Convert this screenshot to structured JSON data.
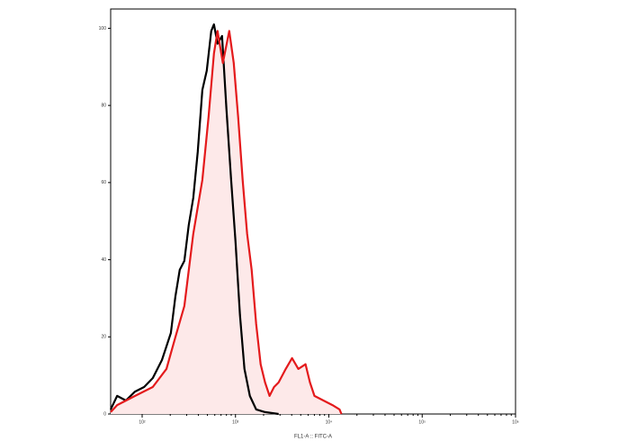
{
  "chart_data": {
    "type": "histogram-overlay",
    "x_label": "FL1-A :: FITC-A",
    "log_x": true,
    "xlim": [
      46,
      1000000
    ],
    "xticks": [
      {
        "value": 100,
        "label": "10²"
      },
      {
        "value": 1000,
        "label": "10³"
      },
      {
        "value": 10000,
        "label": "10⁴"
      },
      {
        "value": 100000,
        "label": "10⁵"
      },
      {
        "value": 1000000,
        "label": "10⁶"
      }
    ],
    "ylim": [
      0,
      105
    ],
    "yticks": [
      0,
      20,
      40,
      60,
      80,
      100
    ],
    "series": [
      {
        "color": "#000000",
        "x": [
          46,
          54,
          67,
          84,
          105,
          130,
          163,
          203,
          227,
          253,
          283,
          316,
          353,
          394,
          441,
          492,
          550,
          588,
          643,
          718,
          801,
          896,
          1000,
          1117,
          1248,
          1426,
          1664,
          2075,
          2897
        ],
        "values": [
          1.2,
          4.7,
          3.5,
          5.8,
          7,
          9.3,
          14,
          21,
          30.4,
          37.4,
          39.7,
          49,
          56,
          68,
          84,
          89,
          99.3,
          101,
          96,
          98,
          79,
          61,
          44.9,
          25.7,
          11.7,
          4.7,
          1.2,
          0.5,
          0
        ]
      },
      {
        "color": "#e41a1c",
        "fill": "#fde9e9",
        "x": [
          46,
          54,
          84,
          130,
          182,
          227,
          283,
          353,
          441,
          515,
          588,
          643,
          733,
          857,
          957,
          1069,
          1194,
          1334,
          1490,
          1664,
          1858,
          2075,
          2318,
          2588,
          2897,
          3452,
          4036,
          4710,
          5623,
          6281,
          7015,
          8750,
          10920,
          13030,
          13650
        ],
        "values": [
          0.5,
          2.3,
          4.7,
          7,
          11.7,
          19.9,
          28,
          46.7,
          60.7,
          77,
          93.5,
          99.3,
          91,
          99.3,
          91,
          77,
          60.7,
          46.7,
          37.4,
          23.4,
          12.9,
          8.2,
          4.7,
          7,
          8.2,
          11.7,
          14.5,
          11.7,
          12.9,
          8.2,
          4.7,
          3.5,
          2.3,
          1.2,
          0
        ]
      }
    ]
  }
}
